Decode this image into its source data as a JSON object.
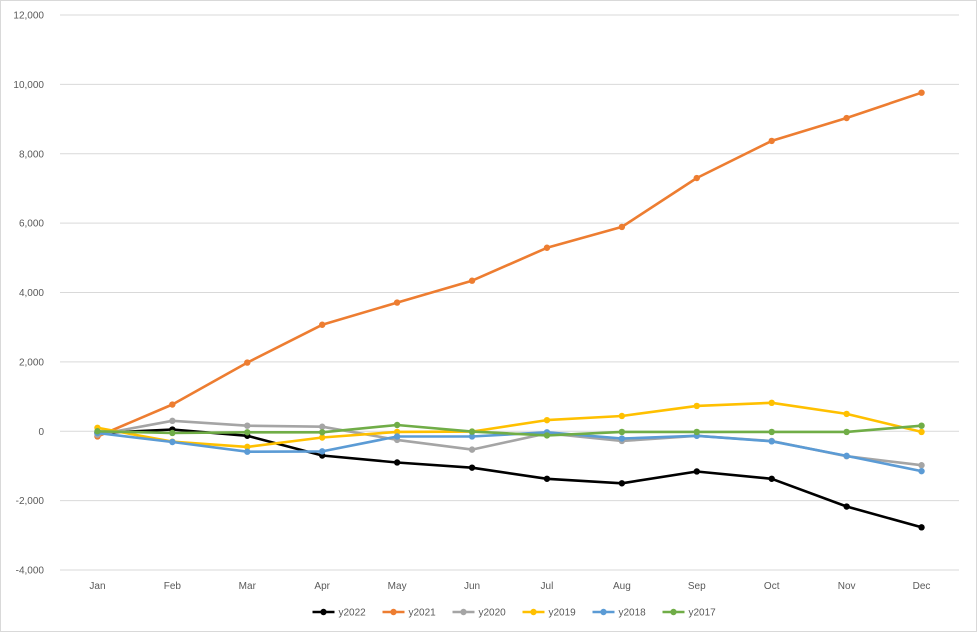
{
  "chart_data": {
    "type": "line",
    "title": "",
    "xlabel": "",
    "ylabel": "",
    "categories": [
      "Jan",
      "Feb",
      "Mar",
      "Apr",
      "May",
      "Jun",
      "Jul",
      "Aug",
      "Sep",
      "Oct",
      "Nov",
      "Dec"
    ],
    "ylim": [
      -4000,
      12000
    ],
    "yticks": [
      -4000,
      -2000,
      0,
      2000,
      4000,
      6000,
      8000,
      10000,
      12000
    ],
    "ytick_labels": [
      "-4,000",
      "-2,000",
      "0",
      "2,000",
      "4,000",
      "6,000",
      "8,000",
      "10,000",
      "12,000"
    ],
    "grid": true,
    "legend_position": "bottom",
    "series": [
      {
        "name": "y2022",
        "color": "#000000",
        "values": [
          -50,
          50,
          -130,
          -700,
          -900,
          -1050,
          -1370,
          -1500,
          -1160,
          -1370,
          -2170,
          -2770
        ]
      },
      {
        "name": "y2021",
        "color": "#ed7d31",
        "values": [
          -150,
          770,
          1980,
          3070,
          3710,
          4340,
          5290,
          5890,
          7300,
          8370,
          9030,
          9760
        ]
      },
      {
        "name": "y2020",
        "color": "#a5a5a5",
        "values": [
          -100,
          300,
          160,
          130,
          -250,
          -530,
          -60,
          -280,
          -130,
          -280,
          -720,
          -980
        ]
      },
      {
        "name": "y2019",
        "color": "#ffc000",
        "values": [
          100,
          -300,
          -450,
          -180,
          -20,
          -10,
          320,
          440,
          730,
          820,
          500,
          -20
        ]
      },
      {
        "name": "y2018",
        "color": "#5b9bd5",
        "values": [
          -50,
          -310,
          -590,
          -580,
          -150,
          -150,
          -30,
          -210,
          -130,
          -290,
          -710,
          -1150
        ]
      },
      {
        "name": "y2017",
        "color": "#70ad47",
        "values": [
          0,
          -50,
          -30,
          -30,
          180,
          -10,
          -120,
          -20,
          -20,
          -20,
          -20,
          160
        ]
      }
    ]
  }
}
